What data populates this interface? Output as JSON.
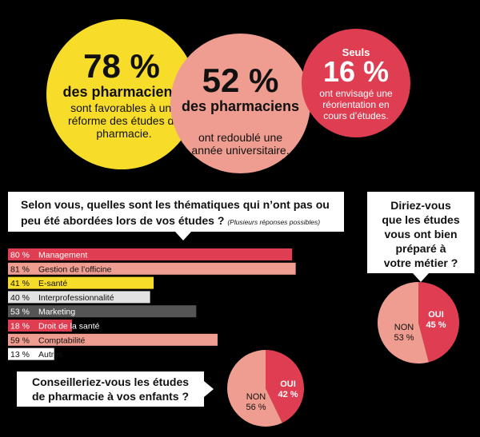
{
  "stats": [
    {
      "value": "78 %",
      "bold": "des pharmaciens",
      "text": "sont favorables à une réforme des études de pharmacie."
    },
    {
      "value": "52 %",
      "bold": "des pharmaciens",
      "text": "ont redoublé une année universitaire."
    },
    {
      "top": "Seuls",
      "value": "16 %",
      "text": "ont envisagé une réorientation en cours d’études."
    }
  ],
  "q1": {
    "line1": "Selon vous, quelles sont les thématiques qui n’ont pas ou",
    "line2": "peu été abordées lors de vos études ?",
    "note": "(Plusieurs réponses possibles)"
  },
  "q2": {
    "line1": "Diriez-vous",
    "line2": "que les études",
    "line3": "vous ont bien",
    "line4": "préparé à",
    "line5": "votre métier ?"
  },
  "q3": {
    "line1": "Conseilleriez-vous les études",
    "line2": "de pharmacie à vos enfants ?"
  },
  "chart_data": [
    {
      "type": "bar",
      "title": "Selon vous, quelles sont les thématiques qui n’ont pas ou peu été abordées lors de vos études ?",
      "categories": [
        "Management",
        "Gestion de l’officine",
        "E-santé",
        "Interprofessionnalité",
        "Marketing",
        "Droit de la santé",
        "Comptabilité",
        "Autres"
      ],
      "values": [
        80,
        81,
        41,
        40,
        53,
        18,
        59,
        13
      ],
      "value_labels": [
        "80 %",
        "81 %",
        "41 %",
        "40 %",
        "53 %",
        "18 %",
        "59 %",
        "13 %"
      ],
      "colors": [
        "#df3e52",
        "#ef9d90",
        "#f8dc2a",
        "#e2e2e2",
        "#555555",
        "#df3e52",
        "#ef9d90",
        "#ffffff"
      ],
      "label_colors": [
        "#ffffff",
        "#111111",
        "#111111",
        "#111111",
        "#ffffff",
        "#ffffff",
        "#111111",
        "#111111"
      ]
    },
    {
      "type": "pie",
      "title": "Diriez-vous que les études vous ont bien préparé à votre métier ?",
      "slices": [
        {
          "label": "OUI",
          "pct": "45 %",
          "value": 45,
          "color": "#df3e52",
          "text_color": "#ffffff"
        },
        {
          "label": "NON",
          "pct": "53 %",
          "value": 53,
          "color": "#ef9d90",
          "text_color": "#111111"
        }
      ]
    },
    {
      "type": "pie",
      "title": "Conseilleriez-vous les études de pharmacie à vos enfants ?",
      "slices": [
        {
          "label": "OUI",
          "pct": "42 %",
          "value": 42,
          "color": "#df3e52",
          "text_color": "#ffffff"
        },
        {
          "label": "NON",
          "pct": "56 %",
          "value": 56,
          "color": "#ef9d90",
          "text_color": "#111111"
        }
      ]
    }
  ]
}
